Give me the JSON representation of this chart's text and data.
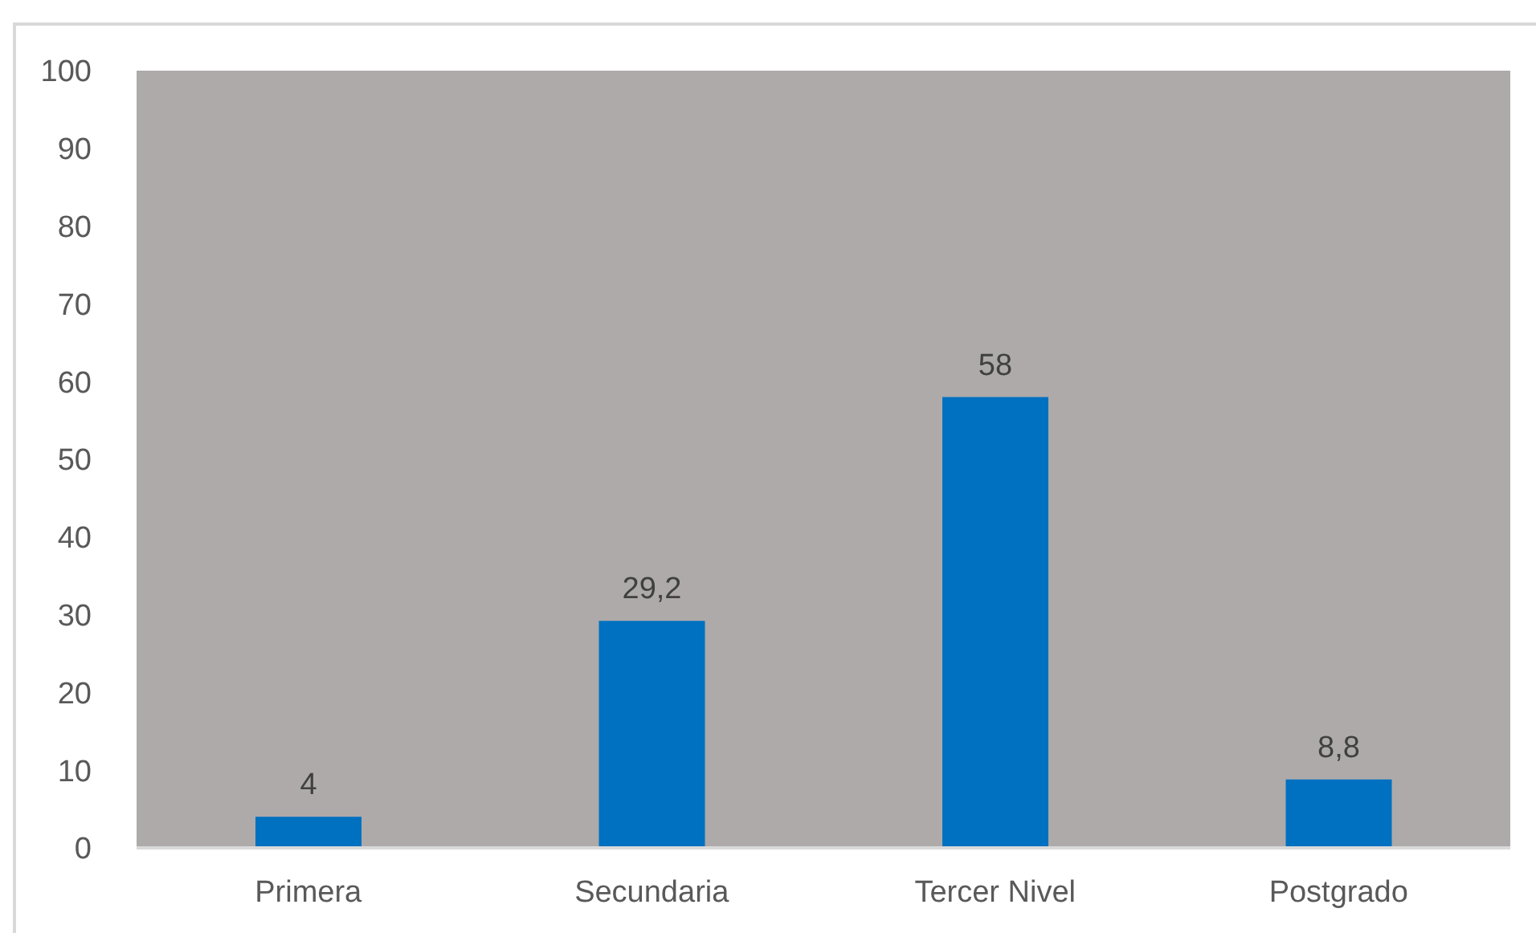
{
  "chart_data": {
    "type": "bar",
    "categories": [
      "Primera",
      "Secundaria",
      "Tercer Nivel",
      "Postgrado"
    ],
    "values": [
      4,
      29.2,
      58,
      8.8
    ],
    "color": "#0070c0",
    "value_labels": [
      "4",
      "29,2",
      "58",
      "8,8"
    ],
    "ylim": [
      0,
      100
    ],
    "yticks": [
      0,
      10,
      20,
      30,
      40,
      50,
      60,
      70,
      80,
      90,
      100
    ]
  }
}
